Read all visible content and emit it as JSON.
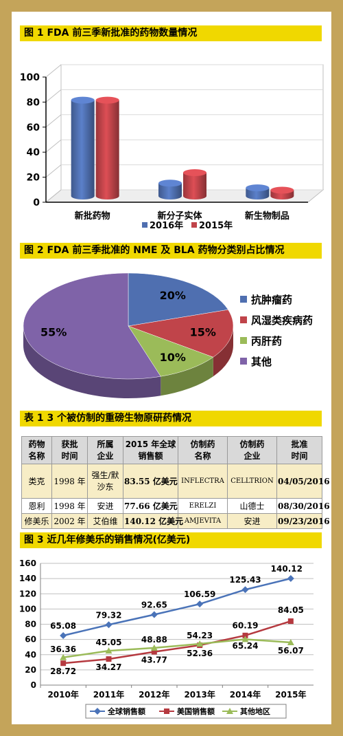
{
  "fig1": {
    "title": "图 1   FDA 前三季新批准的药物数量情况",
    "chart_data": {
      "type": "bar",
      "categories": [
        "新批药物",
        "新分子实体",
        "新生物制品"
      ],
      "series": [
        {
          "name": "2016年",
          "values": [
            82,
            11,
            7
          ],
          "color": "#4f6fb0"
        },
        {
          "name": "2015年",
          "values": [
            82,
            20,
            5
          ],
          "color": "#c0444a"
        }
      ],
      "yticks": [
        "0",
        "20",
        "40",
        "60",
        "80",
        "100"
      ],
      "ylim": [
        0,
        100
      ]
    }
  },
  "fig2": {
    "title": "图 2   FDA 前三季批准的 NME 及 BLA 药物分类别占比情况",
    "chart_data": {
      "type": "pie",
      "slices": [
        {
          "label": "抗肿瘤药",
          "value": 20,
          "text": "20%",
          "color": "#4f6fb0"
        },
        {
          "label": "风湿类疾病药",
          "value": 15,
          "text": "15%",
          "color": "#c0444a"
        },
        {
          "label": "丙肝药",
          "value": 10,
          "text": "10%",
          "color": "#9bbb59"
        },
        {
          "label": "其他",
          "value": 55,
          "text": "55%",
          "color": "#7f63a8"
        }
      ]
    }
  },
  "table1": {
    "title": "表 1   3 个被仿制的重磅生物原研药情况",
    "headers": [
      [
        "药物",
        "名称"
      ],
      [
        "获批",
        "时间"
      ],
      [
        "所属",
        "企业"
      ],
      [
        "2015 年全球",
        "销售额"
      ],
      [
        "仿制药",
        "名称"
      ],
      [
        "仿制药",
        "企业"
      ],
      [
        "批准",
        "时间"
      ]
    ],
    "rows": [
      [
        "类克",
        "1998 年",
        "强生/默沙东",
        "83.55 亿美元",
        "INFLECTRA",
        "CELLTRION",
        "04/05/2016"
      ],
      [
        "恩利",
        "1998 年",
        "安进",
        "77.66 亿美元",
        "ERELZI",
        "山德士",
        "08/30/2016"
      ],
      [
        "修美乐",
        "2002 年",
        "艾伯维",
        "140.12 亿美元",
        "AMJEVITA",
        "安进",
        "09/23/2016"
      ]
    ]
  },
  "fig3": {
    "title": "图 3   近几年修美乐的销售情况(亿美元)",
    "chart_data": {
      "type": "line",
      "x": [
        "2010年",
        "2011年",
        "2012年",
        "2013年",
        "2014年",
        "2015年"
      ],
      "yticks": [
        "0",
        "20",
        "40",
        "60",
        "80",
        "100",
        "120",
        "140",
        "160"
      ],
      "ylim": [
        0,
        160
      ],
      "series": [
        {
          "name": "全球销售额",
          "values": [
            65.08,
            79.32,
            92.65,
            106.59,
            125.43,
            140.12
          ],
          "labels": [
            "65.08",
            "79.32",
            "92.65",
            "106.59",
            "125.43",
            "140.12"
          ],
          "color": "#4a73b8",
          "marker": "diamond"
        },
        {
          "name": "美国销售额",
          "values": [
            28.72,
            34.27,
            43.77,
            52.36,
            65.24,
            84.05
          ],
          "labels": [
            "28.72",
            "34.27",
            "43.77",
            "52.36",
            "65.24",
            "84.05"
          ],
          "color": "#b5393f",
          "marker": "square"
        },
        {
          "name": "其他地区",
          "values": [
            36.36,
            45.05,
            48.88,
            54.23,
            60.19,
            56.07
          ],
          "labels": [
            "36.36",
            "45.05",
            "48.88",
            "54.23",
            "60.19",
            "56.07"
          ],
          "color": "#9bbb59",
          "marker": "triangle"
        }
      ]
    }
  }
}
